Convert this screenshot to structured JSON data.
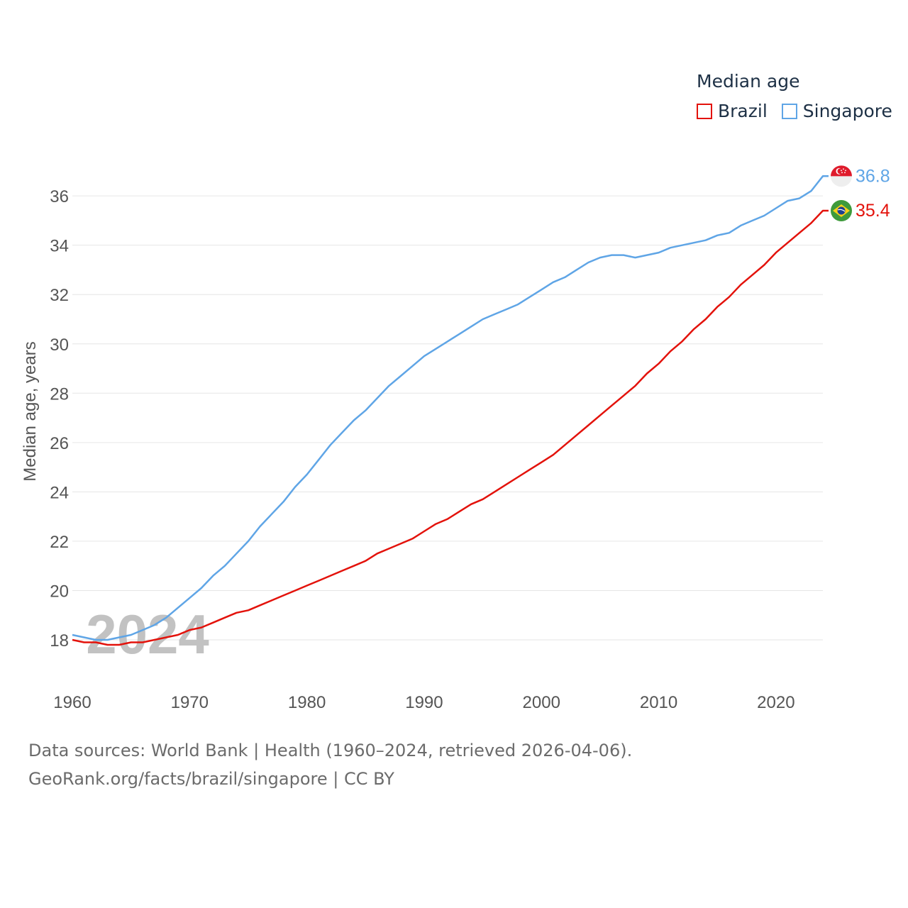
{
  "legend": {
    "title": "Median age",
    "items": [
      {
        "label": "Brazil",
        "color": "#e3120b"
      },
      {
        "label": "Singapore",
        "color": "#5fa5e6"
      }
    ]
  },
  "footer": {
    "line1": "Data sources: World Bank | Health (1960–2024, retrieved 2026-04-06).",
    "line2": "GeoRank.org/facts/brazil/singapore | CC BY"
  },
  "chart_data": {
    "type": "line",
    "title": "Median age",
    "ylabel": "Median age, years",
    "xlabel": "",
    "year_label": "2024",
    "xlim": [
      1960,
      2024
    ],
    "ylim": [
      17,
      37.5
    ],
    "x_ticks": [
      1960,
      1970,
      1980,
      1990,
      2000,
      2010,
      2020
    ],
    "y_ticks": [
      18,
      20,
      22,
      24,
      26,
      28,
      30,
      32,
      34,
      36
    ],
    "grid": true,
    "x": [
      1960,
      1961,
      1962,
      1963,
      1964,
      1965,
      1966,
      1967,
      1968,
      1969,
      1970,
      1971,
      1972,
      1973,
      1974,
      1975,
      1976,
      1977,
      1978,
      1979,
      1980,
      1981,
      1982,
      1983,
      1984,
      1985,
      1986,
      1987,
      1988,
      1989,
      1990,
      1991,
      1992,
      1993,
      1994,
      1995,
      1996,
      1997,
      1998,
      1999,
      2000,
      2001,
      2002,
      2003,
      2004,
      2005,
      2006,
      2007,
      2008,
      2009,
      2010,
      2011,
      2012,
      2013,
      2014,
      2015,
      2016,
      2017,
      2018,
      2019,
      2020,
      2021,
      2022,
      2023,
      2024
    ],
    "series": [
      {
        "name": "Brazil",
        "color": "#e3120b",
        "end_label": "35.4",
        "flag": "brazil-flag",
        "values": [
          18.0,
          17.9,
          17.9,
          17.8,
          17.8,
          17.9,
          17.9,
          18.0,
          18.1,
          18.2,
          18.4,
          18.5,
          18.7,
          18.9,
          19.1,
          19.2,
          19.4,
          19.6,
          19.8,
          20.0,
          20.2,
          20.4,
          20.6,
          20.8,
          21.0,
          21.2,
          21.5,
          21.7,
          21.9,
          22.1,
          22.4,
          22.7,
          22.9,
          23.2,
          23.5,
          23.7,
          24.0,
          24.3,
          24.6,
          24.9,
          25.2,
          25.5,
          25.9,
          26.3,
          26.7,
          27.1,
          27.5,
          27.9,
          28.3,
          28.8,
          29.2,
          29.7,
          30.1,
          30.6,
          31.0,
          31.5,
          31.9,
          32.4,
          32.8,
          33.2,
          33.7,
          34.1,
          34.5,
          34.9,
          35.4
        ]
      },
      {
        "name": "Singapore",
        "color": "#5fa5e6",
        "end_label": "36.8",
        "flag": "singapore-flag",
        "values": [
          18.2,
          18.1,
          18.0,
          18.0,
          18.1,
          18.2,
          18.4,
          18.6,
          18.9,
          19.3,
          19.7,
          20.1,
          20.6,
          21.0,
          21.5,
          22.0,
          22.6,
          23.1,
          23.6,
          24.2,
          24.7,
          25.3,
          25.9,
          26.4,
          26.9,
          27.3,
          27.8,
          28.3,
          28.7,
          29.1,
          29.5,
          29.8,
          30.1,
          30.4,
          30.7,
          31.0,
          31.2,
          31.4,
          31.6,
          31.9,
          32.2,
          32.5,
          32.7,
          33.0,
          33.3,
          33.5,
          33.6,
          33.6,
          33.5,
          33.6,
          33.7,
          33.9,
          34.0,
          34.1,
          34.2,
          34.4,
          34.5,
          34.8,
          35.0,
          35.2,
          35.5,
          35.8,
          35.9,
          36.2,
          36.8
        ]
      }
    ]
  }
}
